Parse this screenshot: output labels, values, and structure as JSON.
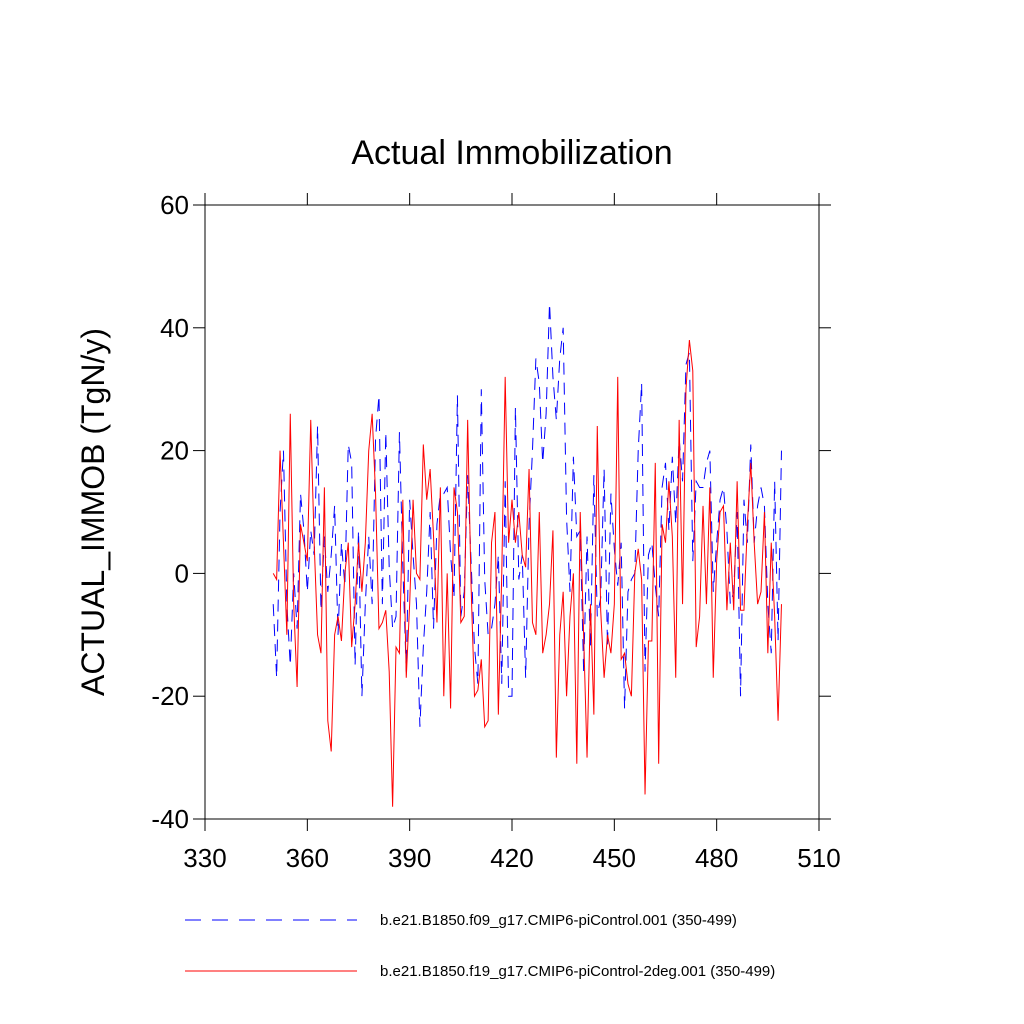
{
  "chart_data": {
    "type": "line",
    "title": "Actual Immobilization",
    "y_label": "ACTUAL_IMMOB  (TgN/y)",
    "xlim": [
      330,
      510
    ],
    "xticks": [
      330,
      360,
      390,
      420,
      450,
      480,
      510
    ],
    "ylim": [
      -40,
      60
    ],
    "yticks": [
      -40,
      -20,
      0,
      20,
      40,
      60
    ],
    "legend": "bottom-left",
    "x": [
      350,
      351,
      352,
      353,
      354,
      355,
      356,
      357,
      358,
      359,
      360,
      361,
      362,
      363,
      364,
      365,
      366,
      367,
      368,
      369,
      370,
      371,
      372,
      373,
      374,
      375,
      376,
      377,
      378,
      379,
      380,
      381,
      382,
      383,
      384,
      385,
      386,
      387,
      388,
      389,
      390,
      391,
      392,
      393,
      394,
      395,
      396,
      397,
      398,
      399,
      400,
      401,
      402,
      403,
      404,
      405,
      406,
      407,
      408,
      409,
      410,
      411,
      412,
      413,
      414,
      415,
      416,
      417,
      418,
      419,
      420,
      421,
      422,
      423,
      424,
      425,
      426,
      427,
      428,
      429,
      430,
      431,
      432,
      433,
      434,
      435,
      436,
      437,
      438,
      439,
      440,
      441,
      442,
      443,
      444,
      445,
      446,
      447,
      448,
      449,
      450,
      451,
      452,
      453,
      454,
      455,
      456,
      457,
      458,
      459,
      460,
      461,
      462,
      463,
      464,
      465,
      466,
      467,
      468,
      469,
      470,
      471,
      472,
      473,
      474,
      475,
      476,
      477,
      478,
      479,
      480,
      481,
      482,
      483,
      484,
      485,
      486,
      487,
      488,
      489,
      490,
      491,
      492,
      493,
      494,
      495,
      496,
      497,
      498,
      499
    ],
    "series": [
      {
        "name": "b.e21.B1850.f09_g17.CMIP6-piControl.001 (350-499)",
        "color": "#0000ff",
        "line_style": "dashed",
        "values": [
          -5,
          -17,
          10,
          20,
          -5,
          -15,
          0,
          -9,
          13,
          7,
          -3,
          7,
          3,
          24,
          -6,
          6,
          -3,
          3,
          11,
          -10,
          5,
          -2,
          21,
          18,
          -15,
          7,
          -20,
          -5,
          6,
          -5,
          22,
          29,
          -5,
          23,
          1,
          -9,
          -7,
          23,
          1,
          -16,
          12,
          3,
          -5,
          -25,
          -12,
          -3,
          10,
          -9,
          8,
          13,
          13,
          14,
          3,
          -4,
          29,
          -7,
          -3,
          16,
          2,
          -12,
          -18,
          30,
          -1,
          -10,
          -9,
          -5,
          3,
          -18,
          15,
          -20,
          -20,
          27,
          -1,
          3,
          -17,
          8,
          20,
          35,
          31,
          18,
          26,
          44,
          32,
          25,
          35,
          40,
          9,
          -3,
          19,
          6,
          7,
          -16,
          6,
          -12,
          16,
          -7,
          -4,
          17,
          -12,
          13,
          4,
          -2,
          5,
          -22,
          -3,
          -1,
          0,
          20,
          31,
          -16,
          3,
          5,
          -2,
          -7,
          14,
          18,
          7,
          19,
          8,
          22,
          15,
          34,
          36,
          2,
          15,
          14,
          14,
          18,
          20,
          -3,
          5,
          12,
          14,
          7,
          -5,
          -3,
          10,
          -20,
          12,
          5,
          21,
          5,
          11,
          14,
          11,
          -5,
          -13,
          15,
          -11,
          20
        ]
      },
      {
        "name": "b.e21.B1850.f19_g17.CMIP6-piControl-2deg.001 (350-499)",
        "color": "#ff0000",
        "line_style": "solid",
        "values": [
          0,
          -1,
          20,
          5,
          -10,
          26,
          -5,
          -18.5,
          8,
          5,
          2,
          25,
          5,
          -10,
          -13,
          14,
          -24,
          -29,
          -10,
          -7,
          -11,
          0,
          5,
          -12,
          -5,
          5,
          -3,
          5,
          20,
          26,
          13,
          -9,
          -8,
          -6,
          -16,
          -38,
          -12,
          -13,
          12,
          -17,
          -5,
          12,
          0,
          -1,
          21,
          12,
          17,
          6,
          -8,
          14,
          -20,
          0,
          -22,
          14,
          10,
          -8,
          -7,
          25,
          -2,
          -20,
          -19,
          -14,
          -25,
          -24,
          5,
          10,
          -23,
          0,
          32,
          5,
          12,
          5,
          10,
          3,
          1,
          17,
          -8,
          -10,
          10,
          -13,
          -10,
          -5,
          7,
          -30,
          -10,
          -3,
          -20,
          -7,
          0,
          -31,
          10,
          -10,
          -30,
          -5,
          -23,
          24,
          -6,
          -17,
          -10,
          -13,
          -5,
          32,
          -14,
          -13,
          -18,
          -20,
          0,
          4,
          -1,
          -36,
          -11,
          -11,
          18,
          -31,
          8,
          5,
          15,
          6,
          -17,
          25,
          -5,
          30,
          38,
          33,
          -12,
          -7,
          11,
          -5,
          14,
          -17,
          2,
          10,
          11,
          -6,
          5,
          -6,
          15,
          -6,
          -6,
          8,
          18,
          5,
          -5,
          -3,
          10,
          -13,
          5,
          -7,
          -24,
          -5
        ]
      }
    ]
  }
}
